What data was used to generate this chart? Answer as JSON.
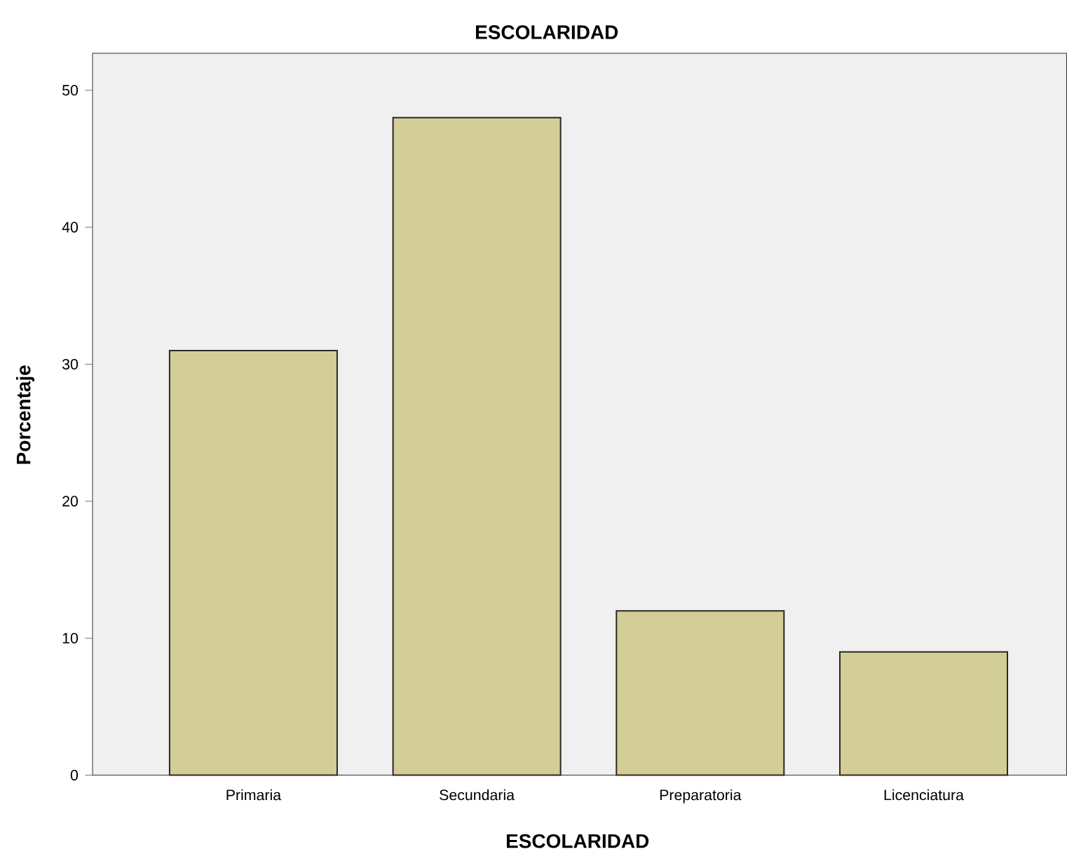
{
  "chart_data": {
    "type": "bar",
    "title": "ESCOLARIDAD",
    "xlabel": "ESCOLARIDAD",
    "ylabel": "Porcentaje",
    "categories": [
      "Primaria",
      "Secundaria",
      "Preparatoria",
      "Licenciatura"
    ],
    "values": [
      31,
      48,
      12,
      9
    ],
    "color": "#d3ce98",
    "ylim": [
      0,
      52.7
    ],
    "yticks": [
      0,
      10,
      20,
      30,
      40,
      50
    ],
    "grid": false
  }
}
